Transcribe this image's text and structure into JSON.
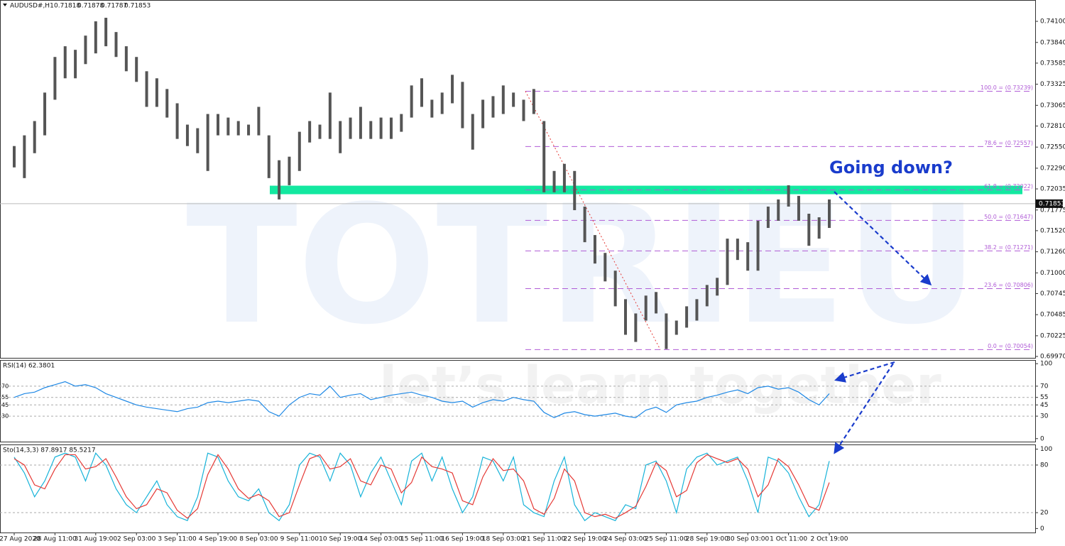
{
  "header": {
    "symbol": "AUDUSD#,H1",
    "quote": [
      "0.71818",
      "0.71878",
      "0.71787",
      "0.71853"
    ]
  },
  "annotation": "Going down?",
  "watermark": {
    "brand": "TOTRIEU",
    "slogan": "let’s learn together"
  },
  "chart_data": [
    {
      "type": "ohlc",
      "color": "#555555",
      "categories": [
        "27 Aug 2020",
        null,
        null,
        null,
        "28 Aug 11:00",
        null,
        null,
        null,
        "31 Aug 19:00",
        null,
        null,
        null,
        "2 Sep 03:00",
        null,
        null,
        null,
        "3 Sep 11:00",
        null,
        null,
        null,
        "4 Sep 19:00",
        null,
        null,
        null,
        "8 Sep 03:00",
        null,
        null,
        null,
        "9 Sep 11:00",
        null,
        null,
        null,
        "10 Sep 19:00",
        null,
        null,
        null,
        "14 Sep 03:00",
        null,
        null,
        null,
        "15 Sep 11:00",
        null,
        null,
        null,
        "16 Sep 19:00",
        null,
        null,
        null,
        "18 Sep 03:00",
        null,
        null,
        null,
        "21 Sep 11:00",
        null,
        null,
        null,
        "22 Sep 19:00",
        null,
        null,
        null,
        "24 Sep 03:00",
        null,
        null,
        null,
        "25 Sep 11:00",
        null,
        null,
        null,
        "28 Sep 19:00",
        null,
        null,
        null,
        "30 Sep 03:00",
        null,
        null,
        null,
        "1 Oct 11:00",
        null,
        null,
        null,
        "2 Oct 19:00"
      ],
      "high": [
        0.72563,
        0.72695,
        0.72871,
        0.73222,
        0.73661,
        0.73793,
        0.73749,
        0.73924,
        0.741,
        0.74144,
        0.73968,
        0.73793,
        0.73661,
        0.73485,
        0.73398,
        0.73266,
        0.7309,
        0.72827,
        0.72783,
        0.72958,
        0.72958,
        0.72914,
        0.72871,
        0.72827,
        0.73046,
        0.72695,
        0.72388,
        0.72432,
        0.72739,
        0.72871,
        0.72827,
        0.73222,
        0.72871,
        0.72914,
        0.73046,
        0.72871,
        0.72914,
        0.72914,
        0.72958,
        0.7331,
        0.73398,
        0.73134,
        0.73222,
        0.73441,
        0.73354,
        0.72958,
        0.73134,
        0.73178,
        0.7331,
        0.73222,
        0.73134,
        0.73266,
        0.72871,
        0.72256,
        0.72344,
        0.72256,
        0.71817,
        0.71466,
        0.71246,
        0.71027,
        0.70676,
        0.705,
        0.7072,
        0.70764,
        0.705,
        0.70412,
        0.70588,
        0.70676,
        0.70851,
        0.70939,
        0.71422,
        0.71422,
        0.71378,
        0.71642,
        0.71817,
        0.71905,
        0.7208,
        0.71949,
        0.71729,
        0.71685,
        0.71905
      ],
      "low": [
        0.723,
        0.72168,
        0.72475,
        0.72695,
        0.73134,
        0.73398,
        0.73398,
        0.73573,
        0.73705,
        0.73793,
        0.73661,
        0.73485,
        0.73354,
        0.73046,
        0.73046,
        0.72914,
        0.72651,
        0.72563,
        0.72475,
        0.72256,
        0.72695,
        0.72695,
        0.72695,
        0.72695,
        0.72695,
        0.72168,
        0.71905,
        0.7208,
        0.72256,
        0.72607,
        0.72651,
        0.72651,
        0.72475,
        0.72651,
        0.72651,
        0.72651,
        0.72651,
        0.72651,
        0.72739,
        0.72914,
        0.73046,
        0.72914,
        0.72958,
        0.7309,
        0.72783,
        0.72519,
        0.72783,
        0.72914,
        0.72958,
        0.73046,
        0.72871,
        0.72958,
        0.71993,
        0.71993,
        0.71993,
        0.71773,
        0.71378,
        0.71115,
        0.70895,
        0.70588,
        0.70237,
        0.70149,
        0.70412,
        0.705,
        0.70061,
        0.70237,
        0.70325,
        0.70412,
        0.70588,
        0.7072,
        0.70851,
        0.71159,
        0.71027,
        0.71027,
        0.71554,
        0.71642,
        0.71817,
        0.71642,
        0.71334,
        0.71422,
        0.71554
      ],
      "ylim": [
        0.69944,
        0.74363
      ],
      "yticks": [
        {
          "value": 0.741,
          "label": "0.74100"
        },
        {
          "value": 0.7384,
          "label": "0.73840"
        },
        {
          "value": 0.73585,
          "label": "0.73585"
        },
        {
          "value": 0.73325,
          "label": "0.73325"
        },
        {
          "value": 0.73065,
          "label": "0.73065"
        },
        {
          "value": 0.7281,
          "label": "0.72810"
        },
        {
          "value": 0.7255,
          "label": "0.72550"
        },
        {
          "value": 0.7229,
          "label": "0.72290"
        },
        {
          "value": 0.72035,
          "label": "0.72035"
        },
        {
          "value": 0.71775,
          "label": "0.71775"
        },
        {
          "value": 0.7152,
          "label": "0.71520"
        },
        {
          "value": 0.7126,
          "label": "0.71260"
        },
        {
          "value": 0.71,
          "label": "0.71000"
        },
        {
          "value": 0.70745,
          "label": "0.70745"
        },
        {
          "value": 0.70485,
          "label": "0.70485"
        },
        {
          "value": 0.70225,
          "label": "0.70225"
        },
        {
          "value": 0.6997,
          "label": "0.69970"
        }
      ],
      "current_price": {
        "value": 0.71853,
        "label": "0.71853"
      },
      "fib_levels": [
        {
          "value": 0.73239,
          "label": "100.0 = (0.73239)"
        },
        {
          "value": 0.72557,
          "label": "78.6 = (0.72557)"
        },
        {
          "value": 0.72022,
          "label": "61.8 = (0.72022)"
        },
        {
          "value": 0.71647,
          "label": "50.0 = (0.71647)"
        },
        {
          "value": 0.71271,
          "label": "38.2 = (0.71271)"
        },
        {
          "value": 0.70806,
          "label": "23.6 = (0.70806)"
        },
        {
          "value": 0.70054,
          "label": "0.0 = (0.70054)"
        }
      ],
      "fib_color": "#b05cd6",
      "zone_color": "#13e8a0"
    },
    {
      "type": "line",
      "title": "RSI(14) 62.3801",
      "ylim": [
        -4,
        104
      ],
      "yticks": [
        100,
        70,
        55,
        45,
        30,
        0
      ],
      "grid": [
        70,
        55,
        45,
        30
      ],
      "series": [
        {
          "color": "#1e88e5",
          "values": [
            55,
            60,
            62,
            68,
            72,
            76,
            70,
            72,
            68,
            60,
            55,
            50,
            45,
            42,
            40,
            38,
            36,
            40,
            42,
            48,
            50,
            48,
            50,
            52,
            50,
            36,
            30,
            45,
            55,
            60,
            58,
            70,
            55,
            58,
            60,
            52,
            55,
            58,
            60,
            62,
            58,
            55,
            50,
            48,
            50,
            42,
            48,
            52,
            50,
            55,
            52,
            50,
            35,
            28,
            34,
            36,
            32,
            30,
            32,
            34,
            30,
            28,
            38,
            42,
            35,
            45,
            48,
            50,
            55,
            58,
            62,
            65,
            60,
            68,
            70,
            66,
            68,
            62,
            52,
            45,
            60
          ]
        }
      ]
    },
    {
      "type": "line",
      "title": "Sto(14,3,3) 87.8917 85.5217",
      "ylim": [
        -5,
        105
      ],
      "yticks": [
        100,
        80,
        20,
        0
      ],
      "grid": [
        80,
        20
      ],
      "series": [
        {
          "color": "#17b3d9",
          "values": [
            90,
            70,
            40,
            60,
            90,
            95,
            90,
            60,
            95,
            80,
            50,
            30,
            20,
            40,
            60,
            30,
            15,
            10,
            40,
            95,
            90,
            60,
            40,
            35,
            50,
            20,
            10,
            30,
            80,
            95,
            90,
            60,
            95,
            80,
            40,
            70,
            90,
            60,
            30,
            85,
            95,
            60,
            90,
            50,
            20,
            40,
            90,
            85,
            60,
            90,
            30,
            20,
            15,
            60,
            90,
            30,
            10,
            20,
            15,
            10,
            30,
            25,
            80,
            85,
            60,
            20,
            75,
            90,
            95,
            80,
            85,
            90,
            60,
            20,
            90,
            85,
            70,
            40,
            15,
            30,
            85
          ]
        },
        {
          "color": "#e53935",
          "values": [
            88,
            80,
            55,
            50,
            75,
            93,
            93,
            75,
            78,
            88,
            65,
            40,
            25,
            30,
            50,
            45,
            23,
            13,
            25,
            68,
            93,
            75,
            50,
            38,
            43,
            35,
            15,
            20,
            55,
            88,
            93,
            75,
            78,
            88,
            60,
            55,
            80,
            75,
            45,
            58,
            90,
            78,
            75,
            70,
            35,
            30,
            65,
            88,
            73,
            75,
            60,
            25,
            18,
            38,
            75,
            60,
            20,
            15,
            18,
            13,
            20,
            28,
            53,
            83,
            73,
            40,
            48,
            83,
            93,
            88,
            83,
            88,
            75,
            40,
            55,
            88,
            78,
            55,
            28,
            23,
            58
          ]
        }
      ]
    }
  ]
}
